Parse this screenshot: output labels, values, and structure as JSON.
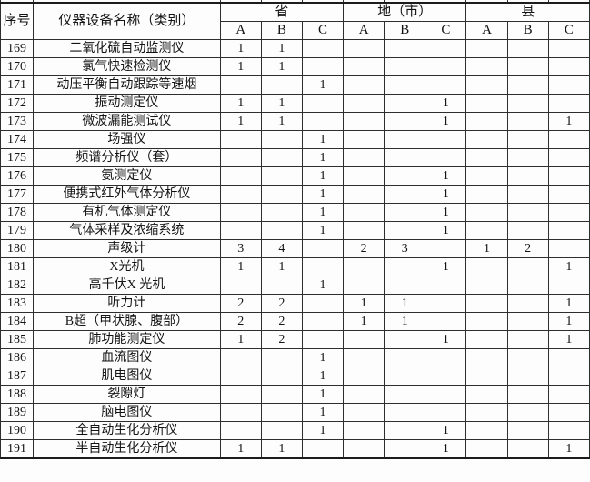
{
  "table": {
    "columns": {
      "serial": "序号",
      "name": "仪器设备名称（类别）"
    },
    "groups": [
      {
        "label": "省",
        "subcols": [
          "A",
          "B",
          "C"
        ]
      },
      {
        "label": "地（市）",
        "subcols": [
          "A",
          "B",
          "C"
        ]
      },
      {
        "label": "县",
        "subcols": [
          "A",
          "B",
          "C"
        ]
      }
    ],
    "rows": [
      {
        "no": "169",
        "name": "二氧化硫自动监测仪",
        "values": [
          "1",
          "1",
          "",
          "",
          "",
          "",
          "",
          "",
          ""
        ]
      },
      {
        "no": "170",
        "name": "氯气快速检测仪",
        "values": [
          "1",
          "1",
          "",
          "",
          "",
          "",
          "",
          "",
          ""
        ]
      },
      {
        "no": "171",
        "name": "动压平衡自动跟踪等速烟",
        "values": [
          "",
          "",
          "1",
          "",
          "",
          "",
          "",
          "",
          ""
        ]
      },
      {
        "no": "172",
        "name": "振动测定仪",
        "values": [
          "1",
          "1",
          "",
          "",
          "",
          "1",
          "",
          "",
          ""
        ]
      },
      {
        "no": "173",
        "name": "微波漏能测试仪",
        "values": [
          "1",
          "1",
          "",
          "",
          "",
          "1",
          "",
          "",
          "1"
        ]
      },
      {
        "no": "174",
        "name": "场强仪",
        "values": [
          "",
          "",
          "1",
          "",
          "",
          "",
          "",
          "",
          ""
        ]
      },
      {
        "no": "175",
        "name": "频谱分析仪（套）",
        "values": [
          "",
          "",
          "1",
          "",
          "",
          "",
          "",
          "",
          ""
        ]
      },
      {
        "no": "176",
        "name": "氨测定仪",
        "values": [
          "",
          "",
          "1",
          "",
          "",
          "1",
          "",
          "",
          ""
        ]
      },
      {
        "no": "177",
        "name": "便携式红外气体分析仪",
        "values": [
          "",
          "",
          "1",
          "",
          "",
          "1",
          "",
          "",
          ""
        ]
      },
      {
        "no": "178",
        "name": "有机气体测定仪",
        "values": [
          "",
          "",
          "1",
          "",
          "",
          "1",
          "",
          "",
          ""
        ]
      },
      {
        "no": "179",
        "name": "气体采样及浓缩系统",
        "values": [
          "",
          "",
          "1",
          "",
          "",
          "1",
          "",
          "",
          ""
        ]
      },
      {
        "no": "180",
        "name": "声级计",
        "values": [
          "3",
          "4",
          "",
          "2",
          "3",
          "",
          "1",
          "2",
          ""
        ]
      },
      {
        "no": "181",
        "name": "X光机",
        "values": [
          "1",
          "1",
          "",
          "",
          "",
          "1",
          "",
          "",
          "1"
        ]
      },
      {
        "no": "182",
        "name": "高千伏X 光机",
        "values": [
          "",
          "",
          "1",
          "",
          "",
          "",
          "",
          "",
          ""
        ]
      },
      {
        "no": "183",
        "name": "听力计",
        "values": [
          "2",
          "2",
          "",
          "1",
          "1",
          "",
          "",
          "",
          "1"
        ]
      },
      {
        "no": "184",
        "name": "B超（甲状腺、腹部）",
        "values": [
          "2",
          "2",
          "",
          "1",
          "1",
          "",
          "",
          "",
          "1"
        ]
      },
      {
        "no": "185",
        "name": "肺功能测定仪",
        "values": [
          "1",
          "2",
          "",
          "",
          "",
          "1",
          "",
          "",
          "1"
        ]
      },
      {
        "no": "186",
        "name": "血流图仪",
        "values": [
          "",
          "",
          "1",
          "",
          "",
          "",
          "",
          "",
          ""
        ]
      },
      {
        "no": "187",
        "name": "肌电图仪",
        "values": [
          "",
          "",
          "1",
          "",
          "",
          "",
          "",
          "",
          ""
        ]
      },
      {
        "no": "188",
        "name": "裂隙灯",
        "values": [
          "",
          "",
          "1",
          "",
          "",
          "",
          "",
          "",
          ""
        ]
      },
      {
        "no": "189",
        "name": "脑电图仪",
        "values": [
          "",
          "",
          "1",
          "",
          "",
          "",
          "",
          "",
          ""
        ]
      },
      {
        "no": "190",
        "name": "全自动生化分析仪",
        "values": [
          "",
          "",
          "1",
          "",
          "",
          "1",
          "",
          "",
          ""
        ]
      },
      {
        "no": "191",
        "name": "半自动生化分析仪",
        "values": [
          "1",
          "1",
          "",
          "",
          "",
          "1",
          "",
          "",
          "1"
        ]
      }
    ]
  }
}
